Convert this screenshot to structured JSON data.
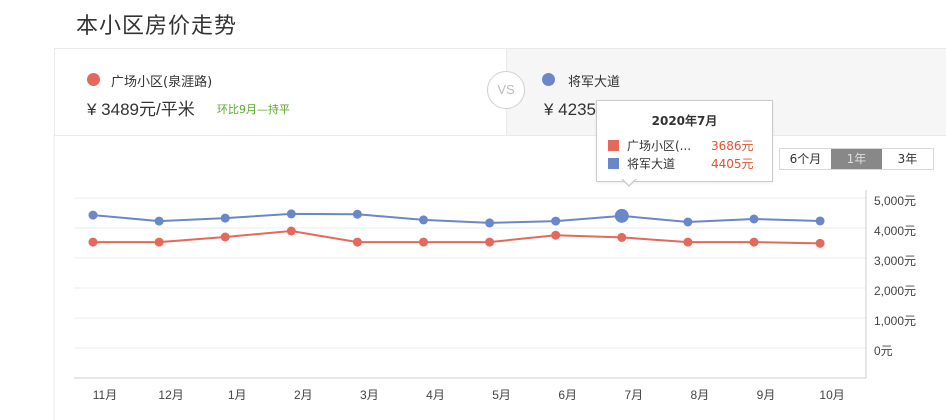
{
  "page": {
    "title": "本小区房价走势"
  },
  "compare": {
    "left": {
      "name": "广场小区(泉涯路)",
      "price": "¥ 3489元/平米",
      "trend": "环比9月—持平",
      "color": "#e4695a"
    },
    "vs_label": "VS",
    "right": {
      "name": "将军大道",
      "price": "¥ 4235元/平米",
      "color": "#6a87c9"
    }
  },
  "range": {
    "options": [
      "6个月",
      "1年",
      "3年"
    ],
    "active": "1年"
  },
  "tooltip": {
    "title": "2020年7月",
    "rows": [
      {
        "label": "广场小区(...",
        "value": "3686元",
        "color": "#e4695a"
      },
      {
        "label": "将军大道",
        "value": "4405元",
        "color": "#6a87c9"
      }
    ]
  },
  "chart_data": {
    "type": "line",
    "title": "本小区房价走势",
    "categories": [
      "11月",
      "12月",
      "1月",
      "2月",
      "3月",
      "4月",
      "5月",
      "6月",
      "7月",
      "8月",
      "9月",
      "10月"
    ],
    "series": [
      {
        "name": "广场小区(泉涯路)",
        "color": "#e4695a",
        "values": [
          3530,
          3530,
          3700,
          3900,
          3530,
          3530,
          3530,
          3760,
          3686,
          3530,
          3530,
          3489
        ]
      },
      {
        "name": "将军大道",
        "color": "#6a87c9",
        "values": [
          4430,
          4230,
          4330,
          4470,
          4460,
          4270,
          4170,
          4230,
          4405,
          4200,
          4300,
          4235
        ]
      }
    ],
    "yticks": [
      "5,000元",
      "4,000元",
      "3,000元",
      "2,000元",
      "1,000元",
      "0元"
    ],
    "ylim": [
      0,
      5000
    ],
    "xlabel": "",
    "ylabel": "",
    "grid": true,
    "legend_position": "top",
    "highlight": {
      "category": "7月"
    }
  }
}
